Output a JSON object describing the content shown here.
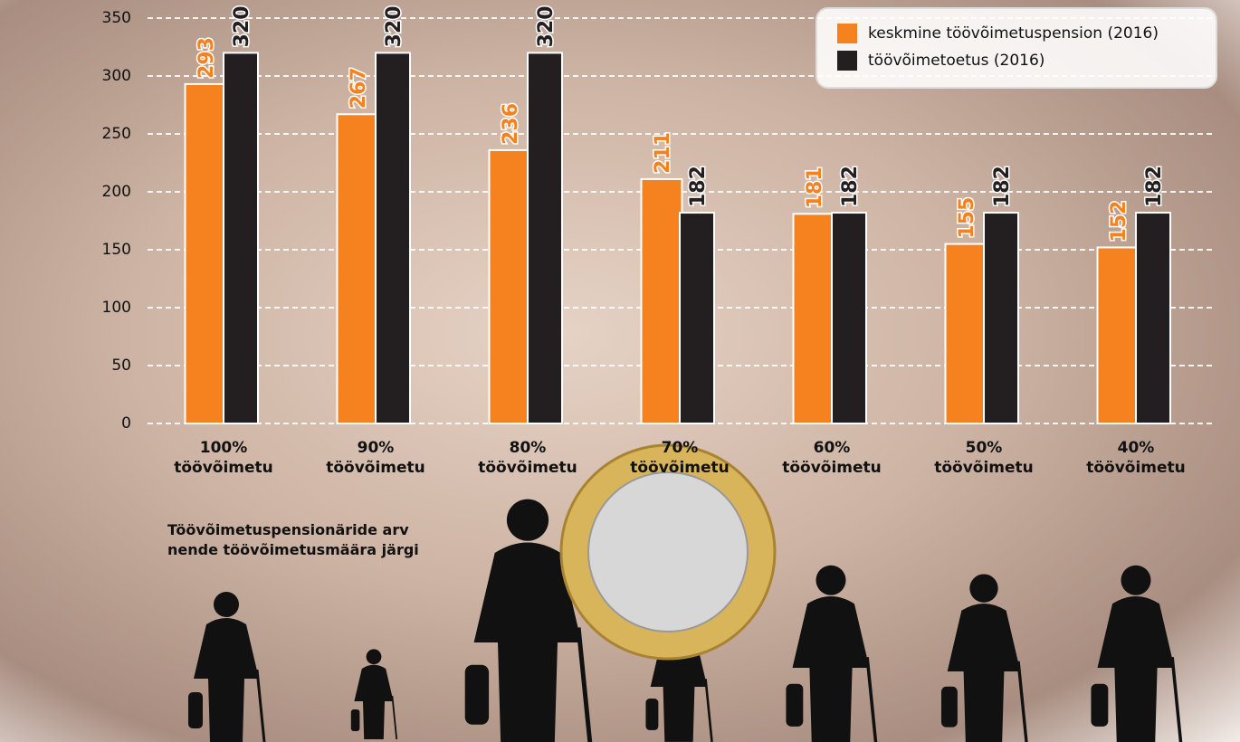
{
  "chart_data": {
    "type": "bar",
    "categories": [
      "100%\ntöövõimetu",
      "90%\ntöövõimetu",
      "80%\ntöövõimetu",
      "70%\ntöövõimetu",
      "60%\ntöövõimetu",
      "50%\ntöövõimetu",
      "40%\ntöövõimetu"
    ],
    "series": [
      {
        "name": "keskmine töövõimetuspension (2016)",
        "color": "#f5821f",
        "values": [
          293,
          267,
          236,
          211,
          181,
          155,
          152
        ]
      },
      {
        "name": "töövõimetoetus (2016)",
        "color": "#231f20",
        "values": [
          320,
          320,
          320,
          182,
          182,
          182,
          182
        ]
      }
    ],
    "ylim": [
      0,
      350
    ],
    "yticks": [
      0,
      50,
      100,
      150,
      200,
      250,
      300,
      350
    ],
    "grid": true,
    "legend": "upper right",
    "note": "Töövõimetuspensionäride arv\nnende töövõimetusmäära järgi"
  }
}
